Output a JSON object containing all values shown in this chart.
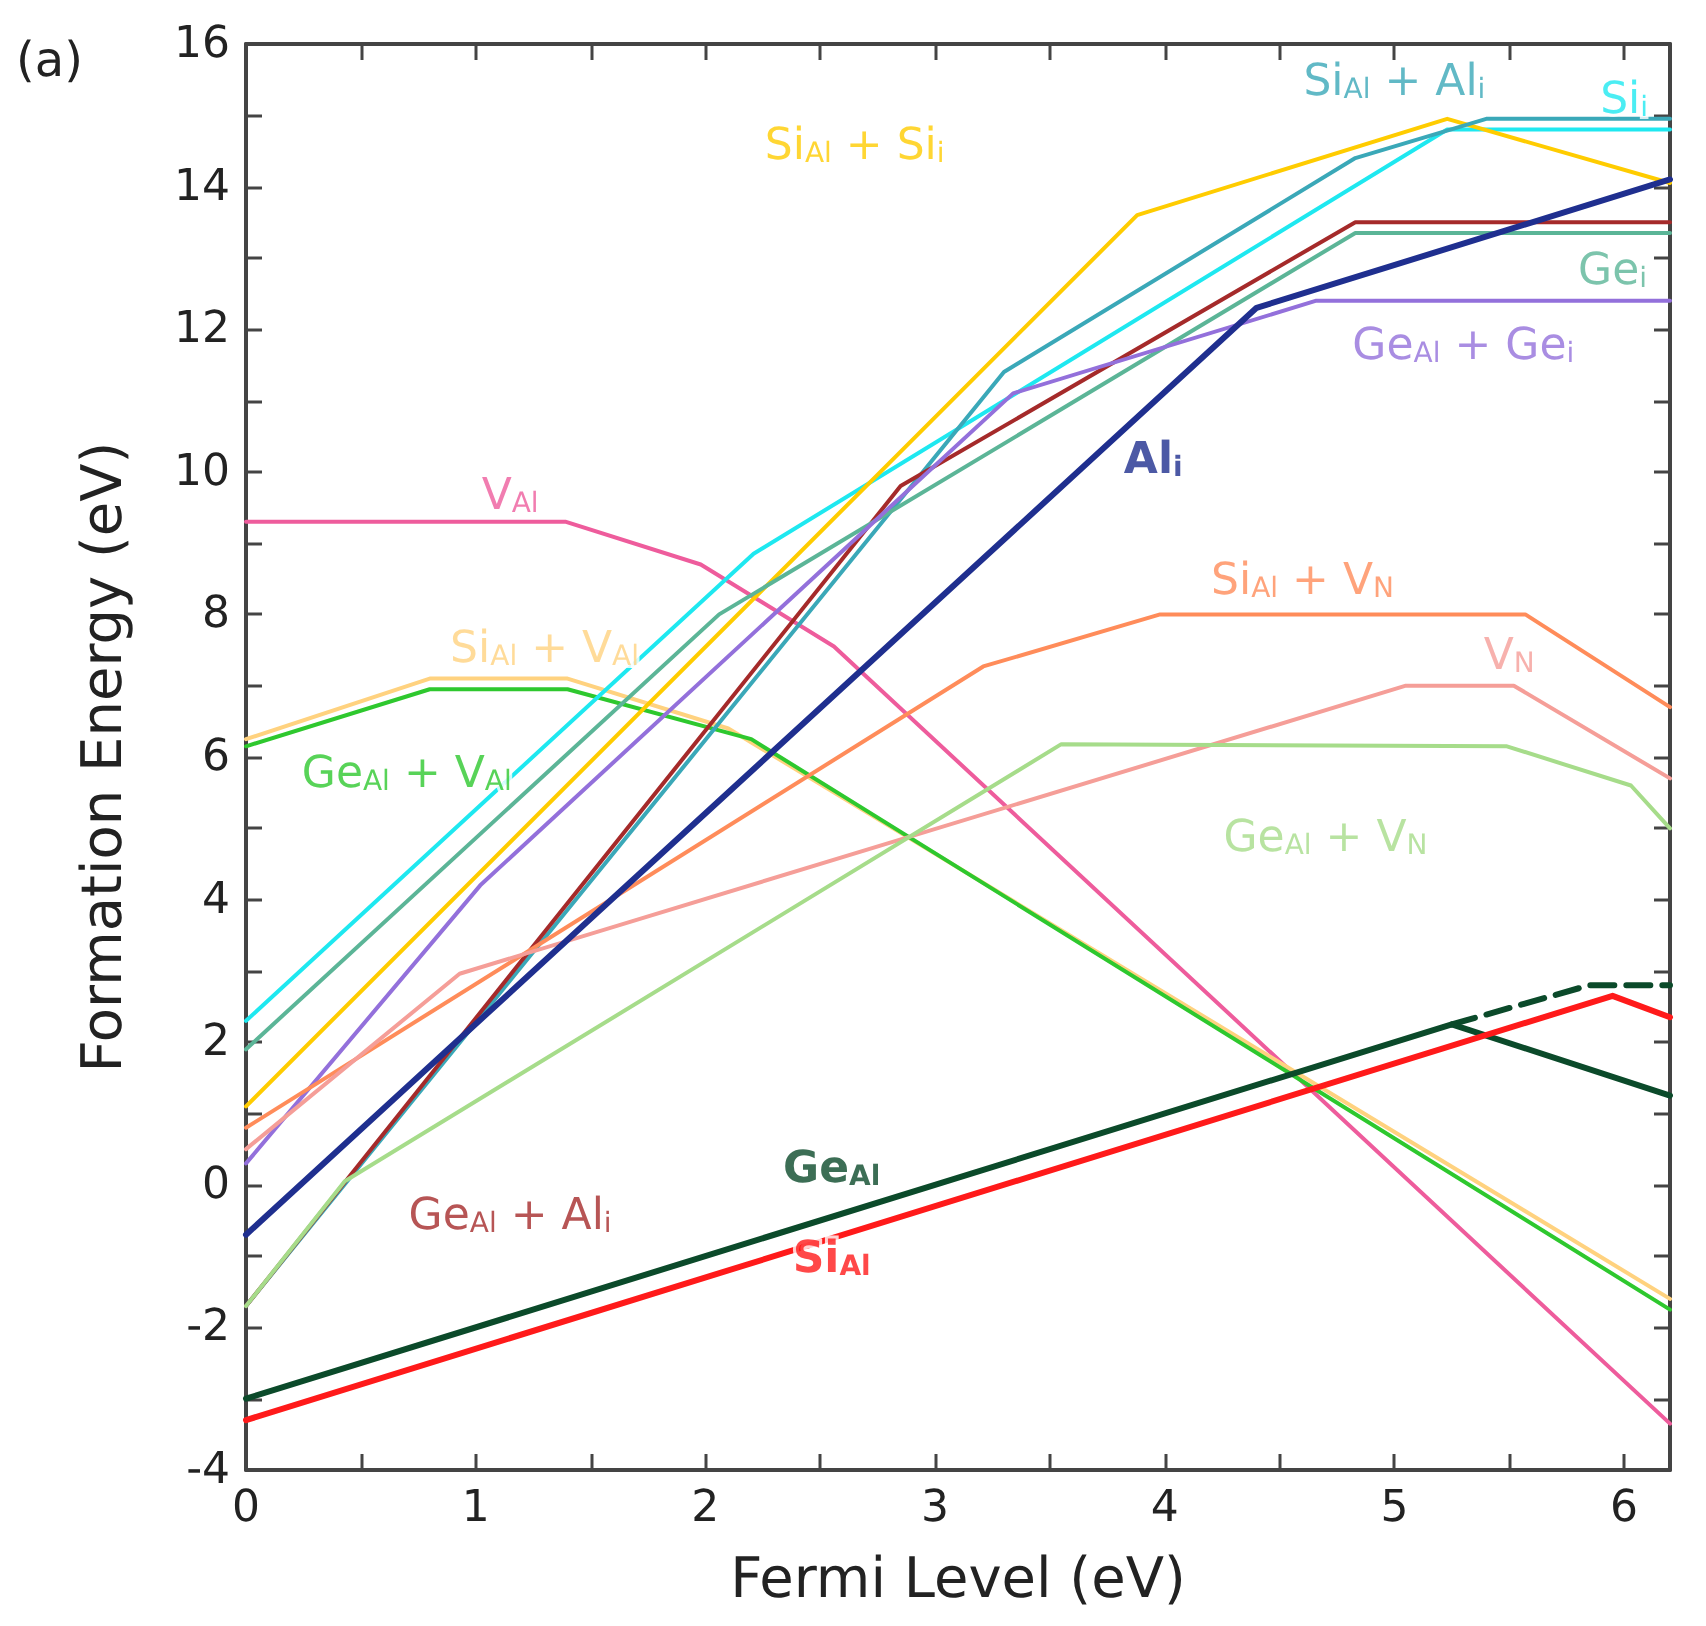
{
  "chart_data": {
    "type": "line",
    "xlabel": "Fermi Level (eV)",
    "ylabel": "Formation Energy (eV)",
    "annotations": [
      "(a)"
    ],
    "xlim": [
      0,
      6.2
    ],
    "ylim": [
      -4,
      16
    ],
    "xticks": [
      0,
      1,
      2,
      3,
      4,
      5,
      6
    ],
    "yticks": [
      -4,
      -2,
      0,
      2,
      4,
      6,
      8,
      10,
      12,
      14,
      16
    ],
    "grid": false,
    "legend": false,
    "marker": "none",
    "series": [
      {
        "name": "V$_{Al}$",
        "color": "#ee5c9c",
        "x": [
          0,
          1.39,
          1.98,
          2.56,
          6.2
        ],
        "values": [
          9.3,
          9.3,
          8.7,
          7.55,
          -3.35
        ]
      },
      {
        "name": "Si$_{Al}$ + V$_{Al}$",
        "color": "#ffd27f",
        "x": [
          0,
          0.8,
          1.4,
          2.1,
          6.2
        ],
        "values": [
          6.25,
          7.1,
          7.1,
          6.4,
          -1.6
        ]
      },
      {
        "name": "Ge$_{Al}$ + V$_{Al}$",
        "color": "#2ec82e",
        "x": [
          0,
          0.8,
          1.4,
          2.2,
          6.2
        ],
        "values": [
          6.15,
          6.95,
          6.95,
          6.25,
          -1.75
        ]
      },
      {
        "name": "Si$_{i}$",
        "color": "#1ee8f0",
        "x": [
          0,
          2.21,
          5.23,
          6.2
        ],
        "values": [
          2.3,
          8.85,
          14.8,
          14.8
        ]
      },
      {
        "name": "Si$_{Al}$ + Si$_{i}$",
        "color": "#ffcc00",
        "x": [
          0,
          3.88,
          5.23,
          6.2
        ],
        "values": [
          1.1,
          13.6,
          14.95,
          14.05
        ]
      },
      {
        "name": "Si$_{Al}$ + Al$_{i}$",
        "color": "#3aa8b8",
        "x": [
          0,
          3.3,
          4.83,
          5.4,
          6.2
        ],
        "values": [
          -1.7,
          11.4,
          14.4,
          14.95,
          14.95
        ]
      },
      {
        "name": "Ge$_{Al}$ + Al$_{i}$",
        "color": "#a52a2a",
        "x": [
          0,
          2.85,
          4.83,
          6.2
        ],
        "values": [
          -1.7,
          9.8,
          13.5,
          13.5
        ]
      },
      {
        "name": "Ge$_{i}$",
        "color": "#5bb597",
        "x": [
          0,
          2.06,
          4.83,
          6.2
        ],
        "values": [
          1.9,
          8.0,
          13.35,
          13.35
        ]
      },
      {
        "name": "Ge$_{Al}$ + Ge$_{i}$",
        "color": "#9370db",
        "x": [
          0,
          1.02,
          3.34,
          4.66,
          6.2
        ],
        "values": [
          0.3,
          4.2,
          11.1,
          12.4,
          12.4
        ]
      },
      {
        "name": "Al$_{i}$",
        "color": "#1f2f8f",
        "x": [
          0,
          4.4,
          6.2
        ],
        "values": [
          -0.7,
          12.3,
          14.1
        ]
      },
      {
        "name": "Si$_{Al}$ + V$_{N}$",
        "color": "#ff8c5a",
        "x": [
          0,
          3.21,
          3.98,
          5.57,
          6.2
        ],
        "values": [
          0.8,
          7.27,
          8.0,
          8.0,
          6.7
        ]
      },
      {
        "name": "V$_{N}$",
        "color": "#f59e98",
        "x": [
          0,
          0.93,
          5.05,
          5.52,
          6.2
        ],
        "values": [
          0.5,
          2.96,
          7.0,
          7.0,
          5.7
        ]
      },
      {
        "name": "Ge$_{Al}$ + V$_{N}$",
        "color": "#a6dc8a",
        "x": [
          0,
          0.43,
          3.55,
          5.49,
          6.03,
          6.2
        ],
        "values": [
          -1.7,
          0.05,
          6.18,
          6.15,
          5.6,
          5.0
        ]
      },
      {
        "name": "Ge$_{Al}$",
        "color": "#0b4a2a",
        "x": [
          0,
          5.25,
          6.2
        ],
        "values": [
          -3.0,
          2.25,
          1.25
        ]
      },
      {
        "name": "Si$_{Al}$",
        "color": "#ff1a1a",
        "x": [
          0,
          5.95,
          6.2
        ],
        "values": [
          -3.3,
          2.65,
          2.35
        ]
      },
      {
        "color": "#0b4a2a",
        "line_style": "dashed",
        "x": [
          5.25,
          5.85,
          6.2
        ],
        "values": [
          2.25,
          2.8,
          2.8
        ]
      }
    ]
  }
}
